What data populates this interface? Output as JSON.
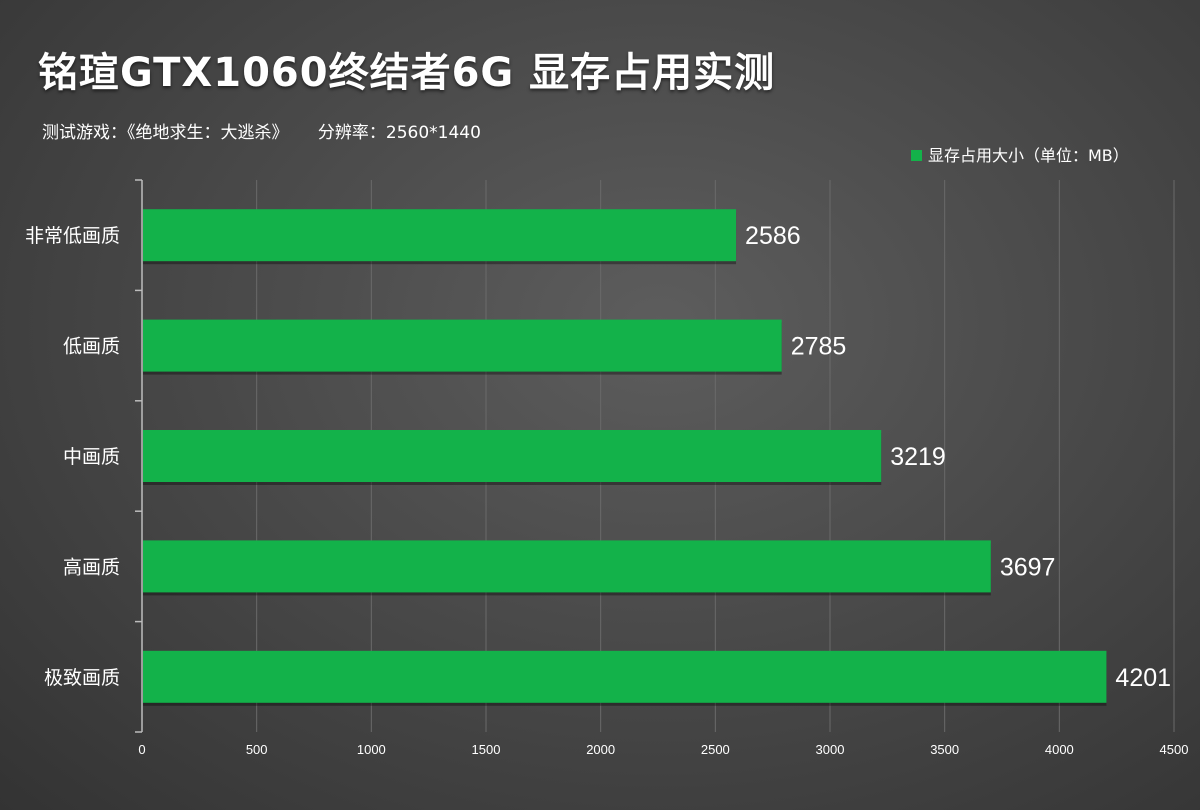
{
  "header": {
    "title": "铭瑄GTX1060终结者6G 显存占用实测",
    "game": "测试游戏：《绝地求生：大逃杀》",
    "resolution": "分辨率：2560*1440"
  },
  "colors": {
    "bar": "#13b24a",
    "text": "#ffffff",
    "grid": "#6a6a6a",
    "axis": "#bdbdbd"
  },
  "chart_data": {
    "type": "bar",
    "orientation": "horizontal",
    "categories": [
      "非常低画质",
      "低画质",
      "中画质",
      "高画质",
      "极致画质"
    ],
    "series": [
      {
        "name": "显存占用大小（单位：MB）",
        "values": [
          2586,
          2785,
          3219,
          3697,
          4201
        ]
      }
    ],
    "xlim": [
      0,
      4500
    ],
    "xticks": [
      "0",
      "500",
      "1000",
      "1500",
      "2000",
      "2500",
      "3000",
      "3500",
      "4000",
      "4500"
    ],
    "grid": true,
    "legend_position": "top-right"
  }
}
